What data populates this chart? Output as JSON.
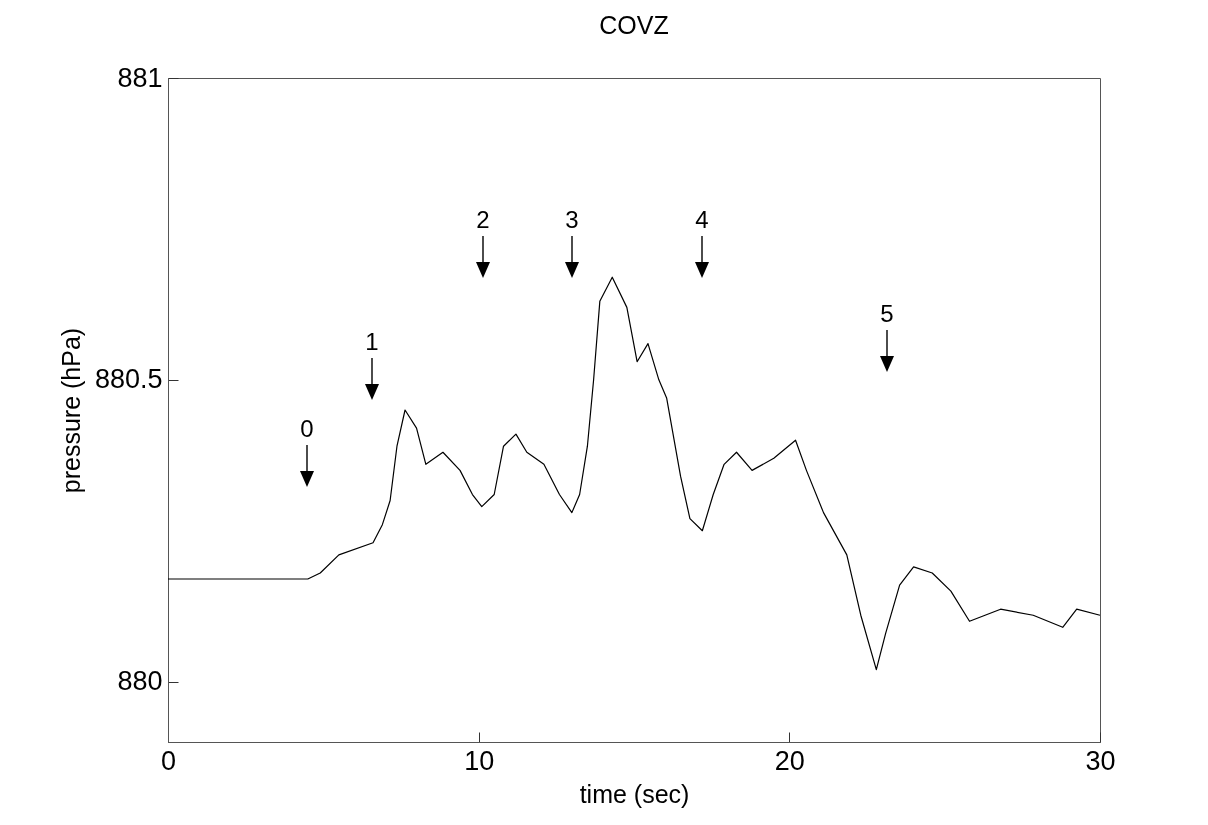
{
  "chart_data": {
    "type": "line",
    "title": "COVZ",
    "xlabel": "time (sec)",
    "ylabel": "pressure (hPa)",
    "x": [
      0,
      1,
      2,
      3,
      4,
      4.5,
      4.9,
      5.5,
      6.6,
      6.9,
      7.15,
      7.37,
      7.63,
      8.0,
      8.3,
      8.85,
      9.4,
      9.8,
      10.1,
      10.5,
      10.8,
      11.2,
      11.55,
      12.1,
      12.6,
      13.0,
      13.25,
      13.5,
      13.7,
      13.9,
      14.3,
      14.77,
      15.1,
      15.45,
      15.8,
      16.05,
      16.5,
      16.8,
      17.2,
      17.55,
      17.9,
      18.3,
      18.8,
      19.5,
      20.2,
      20.55,
      21.1,
      21.85,
      22.3,
      22.8,
      23.1,
      23.55,
      24.0,
      24.6,
      25.2,
      25.8,
      26.8,
      27.85,
      28.8,
      29.25,
      30
    ],
    "series": [
      {
        "color": "#000000",
        "values": [
          880.17,
          880.17,
          880.17,
          880.17,
          880.17,
          880.17,
          880.18,
          880.21,
          880.23,
          880.26,
          880.3,
          880.39,
          880.45,
          880.42,
          880.36,
          880.38,
          880.35,
          880.31,
          880.29,
          880.31,
          880.39,
          880.41,
          880.38,
          880.36,
          880.31,
          880.28,
          880.31,
          880.39,
          880.5,
          880.63,
          880.67,
          880.62,
          880.53,
          880.56,
          880.5,
          880.47,
          880.34,
          880.27,
          880.25,
          880.31,
          880.36,
          880.38,
          880.35,
          880.37,
          880.4,
          880.35,
          880.28,
          880.21,
          880.11,
          880.02,
          880.08,
          880.16,
          880.19,
          880.18,
          880.15,
          880.1,
          880.12,
          880.11,
          880.09,
          880.12,
          880.11
        ]
      }
    ],
    "xlim": [
      0,
      30
    ],
    "xticks": [
      0,
      10,
      20,
      30
    ],
    "ylim": [
      879.9,
      881
    ],
    "yticks": [
      880,
      880.5,
      881
    ],
    "annotations": [
      "0",
      "1",
      "2",
      "3",
      "4",
      "5"
    ],
    "grid": false,
    "line_style": "solid"
  }
}
